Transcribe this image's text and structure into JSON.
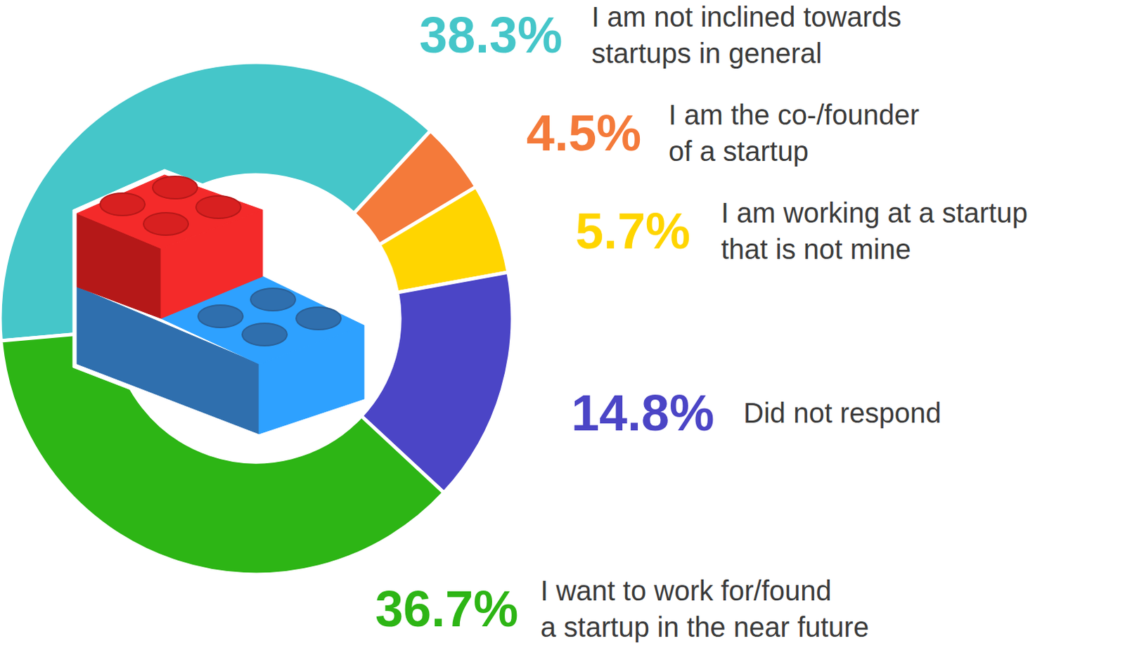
{
  "chart_data": {
    "type": "pie",
    "categories": [
      "I am not inclined towards startups in general",
      "I am the co-/founder of a startup",
      "I am working at a startup that is not mine",
      "Did not respond",
      "I want to work for/found a startup in the near future"
    ],
    "values": [
      38.3,
      4.5,
      5.7,
      14.8,
      36.7
    ],
    "value_labels": [
      "38.3%",
      "4.5%",
      "5.7%",
      "14.8%",
      "36.7%"
    ],
    "colors": [
      "#45c6c9",
      "#f47a3a",
      "#ffd500",
      "#4b45c6",
      "#2db515"
    ],
    "data_labels": true
  }
}
